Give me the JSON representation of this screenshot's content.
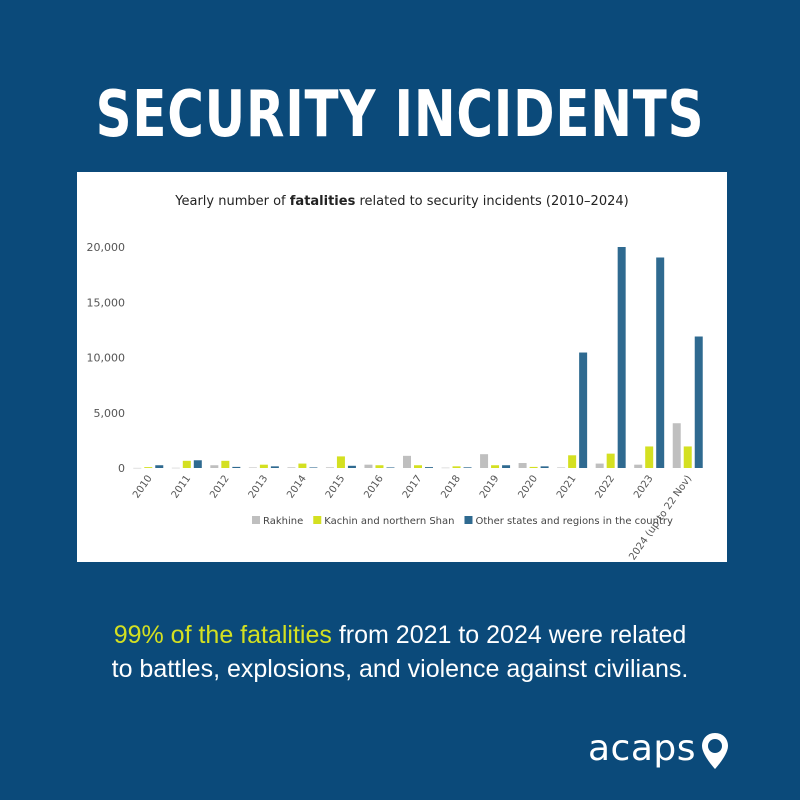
{
  "headline": "SECURITY INCIDENTS",
  "chart_title": {
    "before": "Yearly number of ",
    "bold": "fatalities",
    "after": " related to security incidents (2010–2024)"
  },
  "footer": {
    "highlight": "99% of the fatalities",
    "rest_line1": " from 2021 to 2024 were related",
    "line2": "to battles, explosions, and violence against civilians."
  },
  "logo": {
    "word": "acaps",
    "icon": "map-pin-icon"
  },
  "colors": {
    "background": "#0b4a7a",
    "highlight": "#d4e021",
    "rakhine": "#bfbfbf",
    "kachin": "#d4e021",
    "other": "#2f6a90"
  },
  "chart_data": {
    "type": "bar",
    "categories": [
      "2010",
      "2011",
      "2012",
      "2013",
      "2014",
      "2015",
      "2016",
      "2017",
      "2018",
      "2019",
      "2020",
      "2021",
      "2022",
      "2023",
      "2024 (up to 22 Nov)"
    ],
    "series": [
      {
        "name": "Rakhine",
        "values": [
          10,
          20,
          250,
          50,
          60,
          60,
          300,
          1100,
          30,
          1250,
          450,
          50,
          400,
          300,
          4050
        ]
      },
      {
        "name": "Kachin and northern Shan",
        "values": [
          80,
          650,
          650,
          300,
          400,
          1050,
          250,
          250,
          150,
          250,
          100,
          1150,
          1300,
          1950,
          1950
        ]
      },
      {
        "name": "Other states and regions in the country",
        "values": [
          250,
          700,
          100,
          150,
          50,
          200,
          50,
          80,
          60,
          250,
          150,
          10450,
          20000,
          19050,
          11900
        ]
      }
    ],
    "yticks": [
      "0",
      "5,000",
      "10,000",
      "15,000",
      "20,000"
    ],
    "ylim": [
      0,
      20000
    ],
    "grid": false,
    "legend": "bottom-center"
  }
}
